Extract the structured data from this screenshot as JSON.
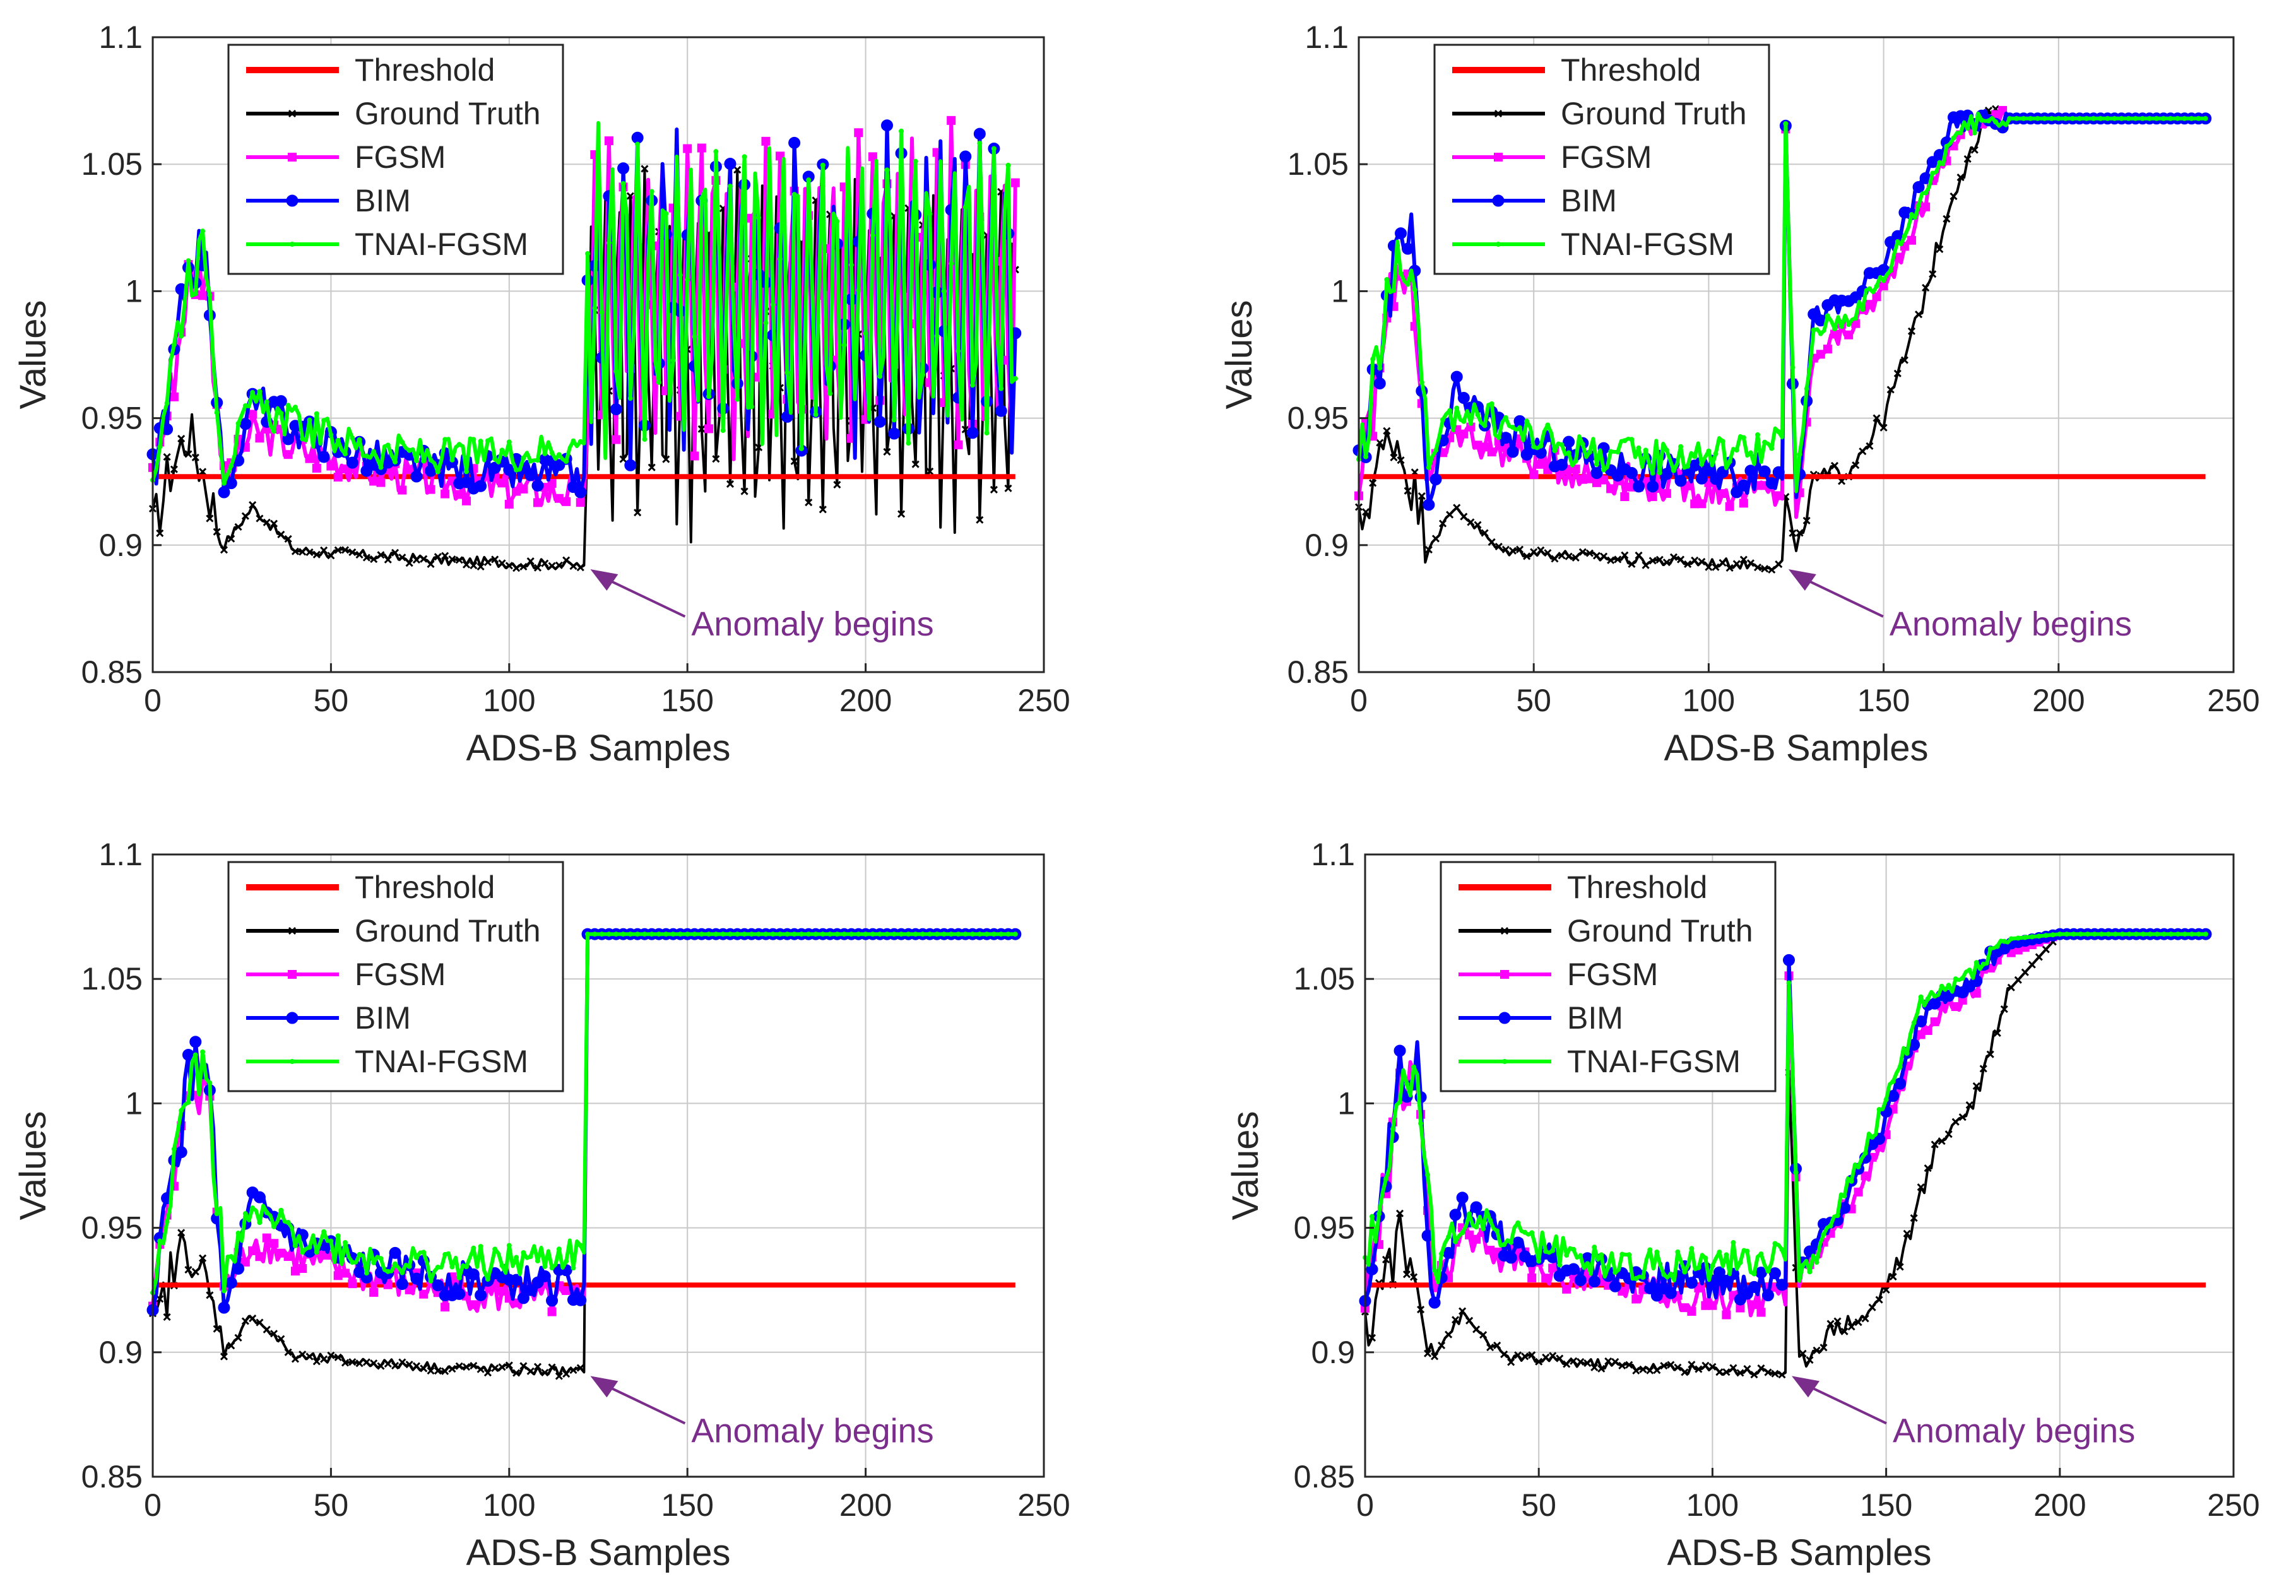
{
  "figure": {
    "panels_layout": "2x2",
    "colors": {
      "threshold": "#ff0000",
      "ground_truth": "#000000",
      "fgsm": "#ff00ff",
      "bim": "#0000ff",
      "tnai": "#00ff00",
      "annotation": "#7b2d8b"
    }
  },
  "chart_data": [
    {
      "type": "line",
      "panel": "top-left",
      "xlabel": "ADS-B Samples",
      "ylabel": "Values",
      "xlim": [
        0,
        250
      ],
      "ylim": [
        0.85,
        1.1
      ],
      "xticks": [
        "0",
        "50",
        "100",
        "150",
        "200",
        "250"
      ],
      "yticks": [
        "0.85",
        "0.9",
        "0.95",
        "1",
        "1.05",
        "1.1"
      ],
      "legend": [
        "Threshold",
        "Ground Truth",
        "FGSM",
        "BIM",
        "TNAI-FGSM"
      ],
      "legend_position": "top-left",
      "annotation": {
        "text": "Anomaly begins",
        "x": 121,
        "y": 0.893
      },
      "threshold": 0.927,
      "anomaly_start": 121,
      "post_anomaly_pattern": "oscillating",
      "series": [
        {
          "name": "Threshold",
          "x": [
            0,
            242
          ],
          "y": [
            0.927,
            0.927
          ]
        },
        {
          "name": "Ground Truth",
          "x": [
            0,
            5,
            10,
            15,
            20,
            28,
            40,
            60,
            80,
            100,
            121,
            125,
            135,
            150,
            165,
            180,
            195,
            210,
            225,
            242
          ],
          "y": [
            0.905,
            0.93,
            0.945,
            0.925,
            0.9,
            0.915,
            0.898,
            0.896,
            0.894,
            0.893,
            0.892,
            0.99,
            0.93,
            1.0,
            0.95,
            1.02,
            0.96,
            1.03,
            0.94,
            1.05
          ]
        },
        {
          "name": "FGSM",
          "x": [
            0,
            5,
            10,
            15,
            20,
            28,
            40,
            60,
            80,
            100,
            121,
            125,
            135,
            150,
            165,
            180,
            195,
            210,
            225,
            242
          ],
          "y": [
            0.925,
            0.96,
            1.005,
            1.01,
            0.925,
            0.945,
            0.938,
            0.93,
            0.925,
            0.922,
            0.92,
            1.05,
            0.95,
            1.06,
            0.97,
            1.06,
            0.98,
            1.065,
            0.95,
            1.068
          ]
        },
        {
          "name": "BIM",
          "x": [
            0,
            5,
            10,
            15,
            20,
            28,
            40,
            60,
            80,
            100,
            121,
            125,
            135,
            150,
            165,
            180,
            195,
            210,
            225,
            242
          ],
          "y": [
            0.927,
            0.965,
            1.01,
            1.02,
            0.915,
            0.96,
            0.945,
            0.935,
            0.93,
            0.928,
            0.927,
            1.058,
            0.955,
            1.065,
            0.975,
            1.068,
            0.985,
            1.068,
            0.955,
            1.068
          ]
        },
        {
          "name": "TNAI-FGSM",
          "x": [
            0,
            5,
            10,
            15,
            20,
            28,
            40,
            60,
            80,
            100,
            121,
            125,
            135,
            150,
            165,
            180,
            195,
            210,
            225,
            242
          ],
          "y": [
            0.93,
            0.97,
            1.008,
            1.015,
            0.93,
            0.955,
            0.948,
            0.938,
            0.935,
            0.936,
            0.94,
            1.055,
            0.96,
            1.062,
            0.98,
            1.066,
            0.99,
            1.066,
            0.96,
            1.066
          ]
        }
      ]
    },
    {
      "type": "line",
      "panel": "top-right",
      "xlabel": "ADS-B Samples",
      "ylabel": "Values",
      "xlim": [
        0,
        250
      ],
      "ylim": [
        0.85,
        1.1
      ],
      "xticks": [
        "0",
        "50",
        "100",
        "150",
        "200",
        "250"
      ],
      "yticks": [
        "0.85",
        "0.9",
        "0.95",
        "1",
        "1.05",
        "1.1"
      ],
      "legend": [
        "Threshold",
        "Ground Truth",
        "FGSM",
        "BIM",
        "TNAI-FGSM"
      ],
      "legend_position": "top-left",
      "annotation": {
        "text": "Anomaly begins",
        "x": 121,
        "y": 0.893
      },
      "threshold": 0.927,
      "anomaly_start": 121,
      "post_anomaly_pattern": "ramp",
      "series": [
        {
          "name": "Threshold",
          "x": [
            0,
            242
          ],
          "y": [
            0.927,
            0.927
          ]
        },
        {
          "name": "Ground Truth",
          "x": [
            0,
            5,
            10,
            15,
            20,
            28,
            40,
            60,
            80,
            100,
            121,
            122,
            125,
            130,
            140,
            150,
            160,
            170,
            180,
            242
          ],
          "y": [
            0.905,
            0.93,
            0.945,
            0.925,
            0.9,
            0.915,
            0.898,
            0.896,
            0.894,
            0.893,
            0.892,
            0.92,
            0.895,
            0.925,
            0.93,
            0.95,
            0.99,
            1.04,
            1.068,
            1.068
          ]
        },
        {
          "name": "FGSM",
          "x": [
            0,
            5,
            10,
            15,
            20,
            28,
            40,
            60,
            80,
            100,
            121,
            122,
            125,
            130,
            140,
            150,
            160,
            170,
            180,
            242
          ],
          "y": [
            0.925,
            0.96,
            1.005,
            1.01,
            0.925,
            0.945,
            0.938,
            0.93,
            0.925,
            0.922,
            0.92,
            1.065,
            0.91,
            0.975,
            0.985,
            1.0,
            1.03,
            1.06,
            1.068,
            1.068
          ]
        },
        {
          "name": "BIM",
          "x": [
            0,
            5,
            10,
            15,
            20,
            28,
            40,
            60,
            80,
            100,
            121,
            122,
            125,
            130,
            140,
            150,
            160,
            170,
            180,
            242
          ],
          "y": [
            0.927,
            0.965,
            1.01,
            1.02,
            0.915,
            0.96,
            0.945,
            0.935,
            0.93,
            0.928,
            0.927,
            1.068,
            0.915,
            0.99,
            0.995,
            1.01,
            1.04,
            1.065,
            1.068,
            1.068
          ]
        },
        {
          "name": "TNAI-FGSM",
          "x": [
            0,
            5,
            10,
            15,
            20,
            28,
            40,
            60,
            80,
            100,
            121,
            122,
            125,
            130,
            140,
            150,
            160,
            170,
            180,
            242
          ],
          "y": [
            0.93,
            0.97,
            1.008,
            1.015,
            0.93,
            0.955,
            0.948,
            0.938,
            0.935,
            0.936,
            0.94,
            1.066,
            0.92,
            0.985,
            0.99,
            1.005,
            1.035,
            1.062,
            1.068,
            1.068
          ]
        }
      ]
    },
    {
      "type": "line",
      "panel": "bottom-left",
      "xlabel": "ADS-B Samples",
      "ylabel": "Values",
      "xlim": [
        0,
        250
      ],
      "ylim": [
        0.85,
        1.1
      ],
      "xticks": [
        "0",
        "50",
        "100",
        "150",
        "200",
        "250"
      ],
      "yticks": [
        "0.85",
        "0.9",
        "0.95",
        "1",
        "1.05",
        "1.1"
      ],
      "legend": [
        "Threshold",
        "Ground Truth",
        "FGSM",
        "BIM",
        "TNAI-FGSM"
      ],
      "legend_position": "top-left",
      "annotation": {
        "text": "Anomaly begins",
        "x": 121,
        "y": 0.893
      },
      "threshold": 0.927,
      "anomaly_start": 121,
      "post_anomaly_pattern": "flat",
      "series": [
        {
          "name": "Threshold",
          "x": [
            0,
            242
          ],
          "y": [
            0.927,
            0.927
          ]
        },
        {
          "name": "Ground Truth",
          "x": [
            0,
            5,
            10,
            15,
            20,
            28,
            40,
            60,
            80,
            100,
            121,
            122,
            242
          ],
          "y": [
            0.905,
            0.93,
            0.945,
            0.925,
            0.9,
            0.915,
            0.898,
            0.896,
            0.894,
            0.893,
            0.892,
            1.068,
            1.068
          ]
        },
        {
          "name": "FGSM",
          "x": [
            0,
            5,
            10,
            15,
            20,
            28,
            40,
            60,
            80,
            100,
            121,
            122,
            242
          ],
          "y": [
            0.925,
            0.96,
            1.005,
            1.01,
            0.925,
            0.945,
            0.938,
            0.93,
            0.925,
            0.922,
            0.92,
            1.068,
            1.068
          ]
        },
        {
          "name": "BIM",
          "x": [
            0,
            5,
            10,
            15,
            20,
            28,
            40,
            60,
            80,
            100,
            121,
            122,
            242
          ],
          "y": [
            0.927,
            0.965,
            1.01,
            1.02,
            0.915,
            0.96,
            0.945,
            0.935,
            0.93,
            0.928,
            0.927,
            1.068,
            1.068
          ]
        },
        {
          "name": "TNAI-FGSM",
          "x": [
            0,
            5,
            10,
            15,
            20,
            28,
            40,
            60,
            80,
            100,
            121,
            122,
            242
          ],
          "y": [
            0.93,
            0.97,
            1.008,
            1.015,
            0.93,
            0.955,
            0.948,
            0.938,
            0.935,
            0.936,
            0.94,
            1.068,
            1.068
          ]
        }
      ]
    },
    {
      "type": "line",
      "panel": "bottom-right",
      "xlabel": "ADS-B Samples",
      "ylabel": "Values",
      "xlim": [
        0,
        250
      ],
      "ylim": [
        0.85,
        1.1
      ],
      "xticks": [
        "0",
        "50",
        "100",
        "150",
        "200",
        "250"
      ],
      "yticks": [
        "0.85",
        "0.9",
        "0.95",
        "1",
        "1.05",
        "1.1"
      ],
      "legend": [
        "Threshold",
        "Ground Truth",
        "FGSM",
        "BIM",
        "TNAI-FGSM"
      ],
      "legend_position": "top-left",
      "annotation": {
        "text": "Anomaly begins",
        "x": 121,
        "y": 0.893
      },
      "threshold": 0.927,
      "anomaly_start": 121,
      "post_anomaly_pattern": "slow-ramp",
      "series": [
        {
          "name": "Threshold",
          "x": [
            0,
            242
          ],
          "y": [
            0.927,
            0.927
          ]
        },
        {
          "name": "Ground Truth",
          "x": [
            0,
            5,
            10,
            15,
            20,
            28,
            40,
            60,
            80,
            100,
            121,
            122,
            125,
            135,
            145,
            155,
            165,
            175,
            185,
            200,
            242
          ],
          "y": [
            0.905,
            0.93,
            0.945,
            0.925,
            0.9,
            0.915,
            0.898,
            0.896,
            0.894,
            0.893,
            0.892,
            1.01,
            0.895,
            0.91,
            0.915,
            0.94,
            0.985,
            1.0,
            1.045,
            1.068,
            1.068
          ]
        },
        {
          "name": "FGSM",
          "x": [
            0,
            5,
            10,
            15,
            20,
            28,
            40,
            60,
            80,
            100,
            121,
            122,
            125,
            130,
            140,
            150,
            160,
            170,
            185,
            200,
            242
          ],
          "y": [
            0.925,
            0.96,
            1.005,
            1.01,
            0.925,
            0.945,
            0.938,
            0.93,
            0.925,
            0.922,
            0.92,
            1.05,
            0.93,
            0.94,
            0.96,
            0.985,
            1.03,
            1.04,
            1.06,
            1.068,
            1.068
          ]
        },
        {
          "name": "BIM",
          "x": [
            0,
            5,
            10,
            15,
            20,
            28,
            40,
            60,
            80,
            100,
            121,
            122,
            125,
            130,
            140,
            150,
            160,
            170,
            185,
            200,
            242
          ],
          "y": [
            0.927,
            0.965,
            1.01,
            1.02,
            0.915,
            0.96,
            0.945,
            0.935,
            0.93,
            0.928,
            0.927,
            1.055,
            0.935,
            0.945,
            0.965,
            0.995,
            1.035,
            1.045,
            1.064,
            1.068,
            1.068
          ]
        },
        {
          "name": "TNAI-FGSM",
          "x": [
            0,
            5,
            10,
            15,
            20,
            28,
            40,
            60,
            80,
            100,
            121,
            122,
            125,
            130,
            140,
            150,
            160,
            170,
            185,
            200,
            242
          ],
          "y": [
            0.93,
            0.97,
            1.008,
            1.015,
            0.93,
            0.955,
            0.948,
            0.938,
            0.935,
            0.936,
            0.94,
            1.052,
            0.93,
            0.94,
            0.97,
            1.0,
            1.04,
            1.048,
            1.066,
            1.068,
            1.068
          ]
        }
      ]
    }
  ]
}
